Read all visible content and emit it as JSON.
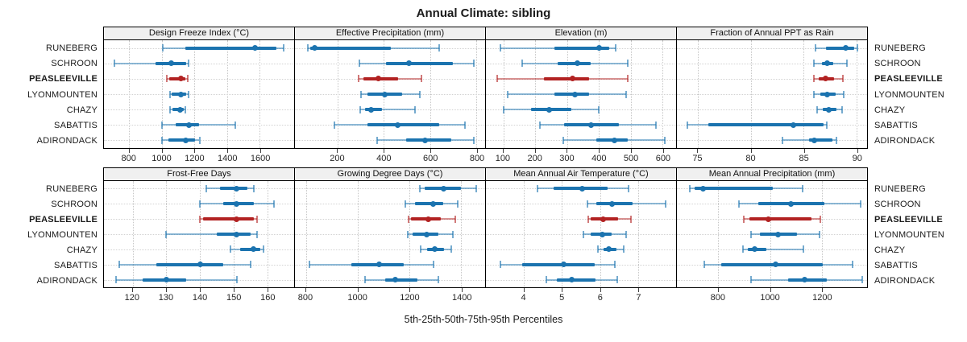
{
  "title": "Annual Climate: sibling",
  "footer": "5th-25th-50th-75th-95th Percentiles",
  "chart_data": {
    "type": "scatter",
    "variant": "trellis-percentile-dotplot-with-whiskers",
    "grid": "dotted",
    "legend_position": "none",
    "percentiles": [
      "5th",
      "25th",
      "50th",
      "75th",
      "95th"
    ],
    "categories": [
      "RUNEBERG",
      "SCHROON",
      "PEASLEEVILLE",
      "LYONMOUNTEN",
      "CHAZY",
      "SABATTIS",
      "ADIRONDACK"
    ],
    "highlight": "PEASLEEVILLE",
    "colors": {
      "normal": "#1b73af",
      "highlight": "#b22222",
      "strip_bg": "#f0f0f0",
      "border": "#000000",
      "gridline": "#c6c6c6"
    },
    "panels": [
      {
        "title": "Design Freeze Index (°C)",
        "row": 1,
        "xlim": [
          645,
          1810
        ],
        "ticks": [
          800,
          1000,
          1200,
          1400,
          1600
        ],
        "values": [
          [
            1005,
            1145,
            1570,
            1700,
            1745
          ],
          [
            710,
            960,
            1058,
            1148,
            1162
          ],
          [
            1030,
            1046,
            1116,
            1146,
            1156
          ],
          [
            1048,
            1060,
            1118,
            1150,
            1162
          ],
          [
            1050,
            1064,
            1110,
            1132,
            1142
          ],
          [
            1000,
            1086,
            1168,
            1226,
            1448
          ],
          [
            1000,
            1040,
            1148,
            1202,
            1230
          ]
        ]
      },
      {
        "title": "Effective Precipitation (mm)",
        "row": 1,
        "xlim": [
          15,
          838
        ],
        "ticks": [
          200,
          400,
          600,
          800
        ],
        "values": [
          [
            70,
            82,
            100,
            430,
            640
          ],
          [
            295,
            410,
            510,
            700,
            790
          ],
          [
            290,
            310,
            376,
            460,
            562
          ],
          [
            300,
            330,
            403,
            480,
            557
          ],
          [
            296,
            320,
            346,
            390,
            536
          ],
          [
            185,
            330,
            460,
            640,
            752
          ],
          [
            372,
            495,
            578,
            690,
            790
          ]
        ]
      },
      {
        "title": "Elevation (m)",
        "row": 1,
        "xlim": [
          45,
          643
        ],
        "ticks": [
          100,
          200,
          300,
          400,
          500,
          600
        ],
        "values": [
          [
            90,
            260,
            400,
            432,
            452
          ],
          [
            160,
            270,
            332,
            375,
            490
          ],
          [
            80,
            228,
            318,
            370,
            490
          ],
          [
            114,
            260,
            326,
            370,
            486
          ],
          [
            100,
            188,
            245,
            314,
            400
          ],
          [
            214,
            292,
            376,
            462,
            580
          ],
          [
            288,
            392,
            450,
            492,
            608
          ]
        ]
      },
      {
        "title": "Fraction of Annual PPT as Rain",
        "row": 1,
        "xlim": [
          73,
          91
        ],
        "ticks": [
          75,
          80,
          85,
          90
        ],
        "values": [
          [
            86.1,
            87.1,
            89.0,
            89.8,
            90.1
          ],
          [
            86.0,
            86.7,
            87.2,
            87.8,
            89.1
          ],
          [
            86.0,
            86.4,
            87.1,
            87.9,
            88.7
          ],
          [
            86.0,
            86.6,
            87.2,
            88.0,
            88.8
          ],
          [
            86.3,
            86.8,
            87.4,
            88.1,
            88.6
          ],
          [
            74.0,
            76.0,
            84.0,
            86.9,
            87.2
          ],
          [
            83.0,
            85.5,
            86.0,
            87.7,
            88.1
          ]
        ]
      },
      {
        "title": "Frost-Free Days",
        "row": 2,
        "xlim": [
          111.5,
          168
        ],
        "ticks": [
          120,
          130,
          140,
          150,
          160
        ],
        "values": [
          [
            142,
            146,
            151,
            154,
            156
          ],
          [
            140,
            147,
            151,
            156,
            162
          ],
          [
            140,
            141,
            151,
            156,
            157
          ],
          [
            130,
            145,
            151,
            155,
            157
          ],
          [
            149,
            152,
            156,
            158,
            159
          ],
          [
            116,
            127,
            140,
            147,
            155
          ],
          [
            115,
            123,
            130,
            136,
            151
          ]
        ]
      },
      {
        "title": "Growing Degree Days (°C)",
        "row": 2,
        "xlim": [
          757,
          1492
        ],
        "ticks": [
          800,
          1000,
          1200,
          1400
        ],
        "values": [
          [
            1240,
            1257,
            1332,
            1400,
            1458
          ],
          [
            1183,
            1220,
            1290,
            1330,
            1386
          ],
          [
            1197,
            1206,
            1273,
            1322,
            1376
          ],
          [
            1192,
            1212,
            1266,
            1310,
            1368
          ],
          [
            1242,
            1268,
            1296,
            1333,
            1362
          ],
          [
            812,
            976,
            1084,
            1178,
            1294
          ],
          [
            1028,
            1106,
            1146,
            1230,
            1312
          ]
        ]
      },
      {
        "title": "Mean Annual Air Temperature (°C)",
        "row": 2,
        "xlim": [
          3.0,
          8.0
        ],
        "ticks": [
          4,
          5,
          6,
          7
        ],
        "values": [
          [
            4.35,
            4.77,
            5.54,
            6.21,
            6.75
          ],
          [
            5.66,
            5.9,
            6.31,
            6.86,
            7.72
          ],
          [
            5.69,
            5.76,
            6.09,
            6.48,
            6.81
          ],
          [
            5.56,
            5.76,
            6.07,
            6.31,
            6.69
          ],
          [
            5.95,
            6.1,
            6.24,
            6.43,
            6.62
          ],
          [
            3.38,
            3.96,
            5.05,
            5.85,
            6.39
          ],
          [
            4.58,
            4.87,
            5.25,
            5.88,
            6.45
          ]
        ]
      },
      {
        "title": "Mean Annual Precipitation (mm)",
        "row": 2,
        "xlim": [
          640,
          1375
        ],
        "ticks": [
          800,
          1000,
          1200
        ],
        "values": [
          [
            690,
            710,
            740,
            1010,
            1125
          ],
          [
            880,
            955,
            1080,
            1210,
            1350
          ],
          [
            900,
            920,
            995,
            1160,
            1195
          ],
          [
            925,
            960,
            1030,
            1105,
            1190
          ],
          [
            895,
            915,
            940,
            985,
            1130
          ],
          [
            745,
            810,
            1020,
            1205,
            1320
          ],
          [
            925,
            1070,
            1135,
            1220,
            1355
          ]
        ]
      }
    ]
  }
}
